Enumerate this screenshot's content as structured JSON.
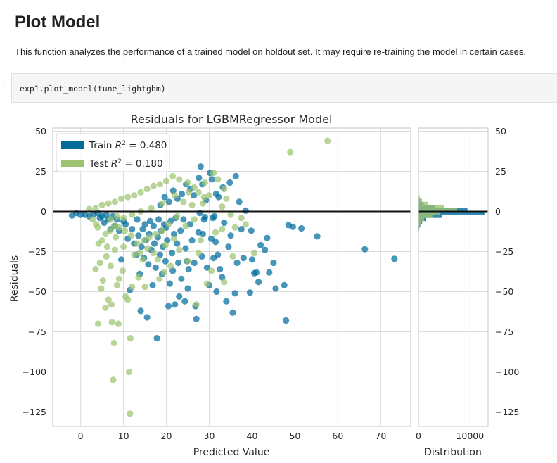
{
  "page": {
    "title": "Plot Model",
    "description": "This function analyzes the performance of a trained model on holdout set. It may require re-training the model in certain cases.",
    "code": "exp1.plot_model(tune_lightgbm)"
  },
  "chart_data": {
    "type": "scatter",
    "title": "Residuals for LGBMRegressor Model",
    "xlabel": "Predicted Value",
    "ylabel": "Residuals",
    "xlim": [
      -6.5,
      77
    ],
    "ylim": [
      -134,
      52
    ],
    "xticks": [
      0,
      10,
      20,
      30,
      40,
      50,
      60,
      70
    ],
    "yticks": [
      50,
      25,
      0,
      -25,
      -50,
      -75,
      -100,
      -125
    ],
    "legend_position": "top-left",
    "series": [
      {
        "name": "Train R² = 0.480",
        "legend_name": "Train",
        "legend_r2": "= 0.480",
        "color": "#006c9c",
        "points": [
          [
            73.2,
            -29.5
          ],
          [
            66.3,
            -23.5
          ],
          [
            55.2,
            -15.5
          ],
          [
            51.5,
            -10.5
          ],
          [
            49.5,
            -9.5
          ],
          [
            48.5,
            -8.5
          ],
          [
            47.9,
            -68
          ],
          [
            47.5,
            -46
          ],
          [
            45.5,
            -48
          ],
          [
            45,
            -32
          ],
          [
            44,
            -38
          ],
          [
            43.5,
            -16.5
          ],
          [
            43,
            -24
          ],
          [
            42,
            -21
          ],
          [
            41.5,
            -44
          ],
          [
            41,
            -38
          ],
          [
            40.5,
            -38.5
          ],
          [
            40,
            -30
          ],
          [
            39.8,
            -12
          ],
          [
            39.5,
            -50.5
          ],
          [
            38.5,
            0.5
          ],
          [
            38,
            -29
          ],
          [
            37.5,
            -11
          ],
          [
            36.5,
            -32
          ],
          [
            36,
            -51
          ],
          [
            35.5,
            -63
          ],
          [
            35,
            -15
          ],
          [
            34.5,
            -22
          ],
          [
            34,
            -56
          ],
          [
            33.5,
            -7
          ],
          [
            33,
            -41
          ],
          [
            32.5,
            -36
          ],
          [
            32,
            -27
          ],
          [
            31.7,
            -50
          ],
          [
            31.5,
            -19
          ],
          [
            31.2,
            -3
          ],
          [
            31,
            -29
          ],
          [
            30.8,
            -4
          ],
          [
            30.5,
            -17
          ],
          [
            30,
            -46
          ],
          [
            29.5,
            -35
          ],
          [
            29,
            -3.5
          ],
          [
            28.8,
            -5
          ],
          [
            28.5,
            -14
          ],
          [
            28.3,
            -28
          ],
          [
            28,
            28
          ],
          [
            27.8,
            -1
          ],
          [
            27.5,
            -13
          ],
          [
            27,
            -67
          ],
          [
            26.8,
            -59
          ],
          [
            26.5,
            -32
          ],
          [
            26,
            -18
          ],
          [
            25.5,
            -8
          ],
          [
            25.2,
            -36
          ],
          [
            25,
            -48
          ],
          [
            24.8,
            -31
          ],
          [
            24.5,
            -23
          ],
          [
            24.3,
            -56
          ],
          [
            24,
            -5
          ],
          [
            23.5,
            -42
          ],
          [
            23.3,
            -12
          ],
          [
            23,
            -53
          ],
          [
            22.8,
            -32
          ],
          [
            22.5,
            -20
          ],
          [
            22.2,
            -4
          ],
          [
            22,
            -58
          ],
          [
            21.8,
            -14
          ],
          [
            21.5,
            -37
          ],
          [
            21.3,
            -26
          ],
          [
            21,
            -6
          ],
          [
            20.8,
            -45
          ],
          [
            20.5,
            -59
          ],
          [
            20.2,
            -18
          ],
          [
            20,
            -10
          ],
          [
            19.8,
            -31
          ],
          [
            19.5,
            -8
          ],
          [
            19.2,
            -22
          ],
          [
            19,
            -39
          ],
          [
            18.8,
            -12
          ],
          [
            18.5,
            -27
          ],
          [
            18.2,
            -5
          ],
          [
            18,
            -16
          ],
          [
            17.8,
            -79
          ],
          [
            17.5,
            -35
          ],
          [
            17.2,
            -20
          ],
          [
            17,
            -9
          ],
          [
            16.8,
            -46
          ],
          [
            16.5,
            -24
          ],
          [
            16.2,
            -6
          ],
          [
            16,
            -14
          ],
          [
            15.8,
            -33
          ],
          [
            15.5,
            -66
          ],
          [
            15.2,
            -18
          ],
          [
            15,
            -8
          ],
          [
            14.8,
            -29
          ],
          [
            14.5,
            -11
          ],
          [
            14.2,
            -22
          ],
          [
            14,
            -62
          ],
          [
            13.8,
            -39
          ],
          [
            13.5,
            -15
          ],
          [
            13.2,
            -5
          ],
          [
            13,
            -27
          ],
          [
            12.5,
            -20
          ],
          [
            12,
            -11
          ],
          [
            11.5,
            -49
          ],
          [
            11,
            -17
          ],
          [
            10.5,
            -8
          ],
          [
            10,
            -6
          ],
          [
            9.5,
            -30
          ],
          [
            9,
            -12
          ],
          [
            8.5,
            -5
          ],
          [
            8,
            -9
          ],
          [
            7.5,
            -3
          ],
          [
            7,
            -11
          ],
          [
            6.5,
            -5
          ],
          [
            6,
            -2
          ],
          [
            5.5,
            -7
          ],
          [
            5,
            -3
          ],
          [
            4.5,
            -4
          ],
          [
            4,
            -1
          ],
          [
            3,
            -2
          ],
          [
            2,
            -3
          ],
          [
            1,
            -2
          ],
          [
            0,
            -2
          ],
          [
            -1,
            -1
          ],
          [
            -2,
            -2.5
          ],
          [
            37,
            6
          ],
          [
            36.2,
            22
          ],
          [
            34.8,
            18
          ],
          [
            33.2,
            15
          ],
          [
            32.2,
            9
          ],
          [
            31.6,
            11
          ],
          [
            30.6,
            20
          ],
          [
            30.2,
            24
          ],
          [
            29.2,
            7
          ],
          [
            28.4,
            17
          ],
          [
            27.6,
            21
          ],
          [
            26.4,
            10
          ],
          [
            25.6,
            14
          ],
          [
            24.6,
            17
          ],
          [
            23.6,
            11
          ],
          [
            22.6,
            8
          ],
          [
            21.6,
            13
          ],
          [
            20.6,
            6
          ],
          [
            19.6,
            9
          ],
          [
            18.6,
            4
          ]
        ]
      },
      {
        "name": "Test R² = 0.180",
        "legend_name": "Test",
        "legend_r2": "= 0.180",
        "color": "#9dc370",
        "points": [
          [
            57.6,
            44
          ],
          [
            48.9,
            37
          ],
          [
            11.5,
            -126
          ],
          [
            7.6,
            -105
          ],
          [
            11.3,
            -100
          ],
          [
            7.8,
            -82
          ],
          [
            11.6,
            -79
          ],
          [
            4.1,
            -70
          ],
          [
            7.3,
            -69
          ],
          [
            8.8,
            -70
          ],
          [
            5.8,
            -60
          ],
          [
            7.2,
            -58
          ],
          [
            6.5,
            -55
          ],
          [
            10.5,
            -53
          ],
          [
            11,
            -55
          ],
          [
            4.8,
            -48
          ],
          [
            8.5,
            -46
          ],
          [
            12,
            -47
          ],
          [
            15,
            -47
          ],
          [
            5.2,
            -43
          ],
          [
            9,
            -42
          ],
          [
            13.5,
            -41
          ],
          [
            3.5,
            -36
          ],
          [
            7,
            -34
          ],
          [
            9.8,
            -37
          ],
          [
            18.4,
            -42
          ],
          [
            19.5,
            -38
          ],
          [
            27,
            -58
          ],
          [
            29.5,
            -45
          ],
          [
            33.5,
            -44
          ],
          [
            40.5,
            -26
          ],
          [
            35.5,
            -28
          ],
          [
            30.5,
            -37
          ],
          [
            25,
            -31
          ],
          [
            21,
            -34
          ],
          [
            17,
            -26
          ],
          [
            14.5,
            -30
          ],
          [
            12.5,
            -27
          ],
          [
            10,
            -22
          ],
          [
            8,
            -24
          ],
          [
            6,
            -28
          ],
          [
            4.5,
            -32
          ],
          [
            23,
            -24
          ],
          [
            28,
            -18
          ],
          [
            31.5,
            -13
          ],
          [
            33,
            -11
          ],
          [
            36,
            -10
          ],
          [
            38.5,
            -8
          ],
          [
            37.5,
            -4
          ],
          [
            35,
            -2
          ],
          [
            33,
            3
          ],
          [
            34,
            8
          ],
          [
            33.5,
            14
          ],
          [
            32,
            20
          ],
          [
            31,
            24
          ],
          [
            29,
            18
          ],
          [
            27.5,
            12
          ],
          [
            26.5,
            15
          ],
          [
            25,
            18
          ],
          [
            23,
            20
          ],
          [
            21.5,
            22
          ],
          [
            20,
            19
          ],
          [
            18.5,
            17
          ],
          [
            17,
            16
          ],
          [
            15.5,
            14
          ],
          [
            14,
            12
          ],
          [
            12.5,
            10
          ],
          [
            11,
            9
          ],
          [
            9.5,
            8
          ],
          [
            8,
            6
          ],
          [
            6.5,
            5
          ],
          [
            5,
            4
          ],
          [
            3.5,
            2
          ],
          [
            2,
            1.5
          ],
          [
            30,
            10
          ],
          [
            28.5,
            5
          ],
          [
            26,
            4
          ],
          [
            24,
            6
          ],
          [
            22.5,
            -3
          ],
          [
            20.5,
            -8
          ],
          [
            19,
            -12
          ],
          [
            17.5,
            -14
          ],
          [
            16,
            -16
          ],
          [
            14.8,
            -18
          ],
          [
            13.2,
            -20
          ],
          [
            11.8,
            -15
          ],
          [
            10.3,
            -12
          ],
          [
            9,
            -10
          ],
          [
            7.8,
            -9
          ],
          [
            6.8,
            -12
          ],
          [
            5.8,
            -14
          ],
          [
            5,
            -18
          ],
          [
            4.2,
            -20
          ],
          [
            3.6,
            -8
          ],
          [
            2.8,
            -5
          ],
          [
            4,
            -10
          ],
          [
            6.2,
            -22
          ],
          [
            8.2,
            -16
          ],
          [
            13.8,
            -26
          ],
          [
            15.6,
            -23
          ],
          [
            18,
            -30
          ],
          [
            19.8,
            -21
          ],
          [
            21.8,
            -17
          ],
          [
            24.5,
            -9
          ],
          [
            26.5,
            -5
          ],
          [
            27.5,
            -26
          ],
          [
            19,
            5
          ],
          [
            16.5,
            2
          ],
          [
            14,
            0
          ],
          [
            12,
            -2
          ],
          [
            10,
            -4
          ],
          [
            8.5,
            -3
          ],
          [
            7,
            -5
          ],
          [
            22,
            10
          ],
          [
            25.2,
            12
          ],
          [
            28.8,
            9
          ]
        ]
      }
    ],
    "distribution": {
      "xlabel": "Distribution",
      "xticks": [
        0,
        10000
      ],
      "xlim": [
        0,
        13500
      ],
      "bin_edges": [
        -12,
        -10,
        -8,
        -6,
        -4,
        -2,
        0,
        2,
        4,
        6,
        8,
        10,
        12
      ],
      "train_counts": [
        150,
        350,
        700,
        1500,
        4500,
        12800,
        9500,
        3200,
        1000,
        350,
        120,
        50
      ],
      "test_counts": [
        100,
        250,
        500,
        1100,
        2700,
        4200,
        7500,
        5000,
        1800,
        700,
        250,
        80
      ]
    }
  }
}
